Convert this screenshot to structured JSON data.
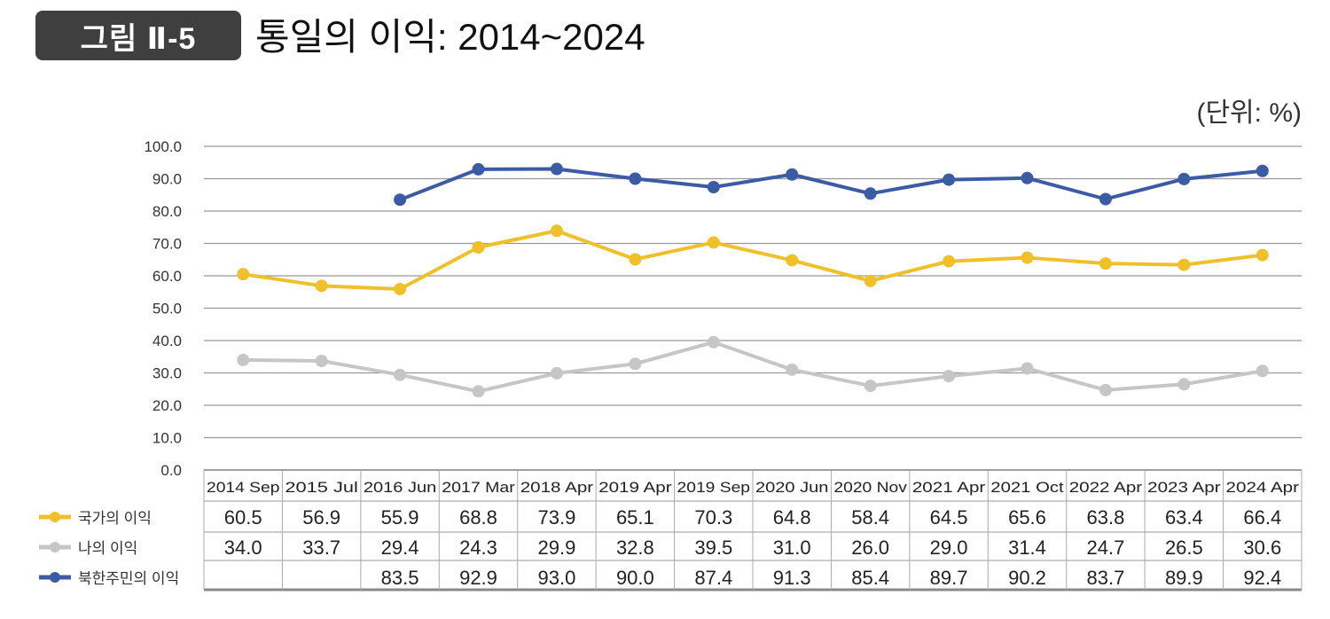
{
  "figure_label": "그림 Ⅱ-5",
  "title": "통일의 이익: 2014~2024",
  "unit": "(단위:  %)",
  "colors": {
    "national": "#f0c02a",
    "personal": "#c6c6c6",
    "nk": "#3b5ba5"
  },
  "chart_data": {
    "type": "line",
    "title": "통일의 이익: 2014~2024",
    "ylabel": "%",
    "ylim": [
      0,
      100
    ],
    "yticks": [
      "100.0",
      "90.0",
      "80.0",
      "70.0",
      "60.0",
      "50.0",
      "40.0",
      "30.0",
      "20.0",
      "10.0",
      "0.0"
    ],
    "grid": true,
    "legend": "bottom-left (table)",
    "categories": [
      "2014 Sep",
      "2015 Jul",
      "2016 Jun",
      "2017 Mar",
      "2018 Apr",
      "2019 Apr",
      "2019 Sep",
      "2020 Jun",
      "2020 Nov",
      "2021 Apr",
      "2021 Oct",
      "2022 Apr",
      "2023 Apr",
      "2024 Apr"
    ],
    "series": [
      {
        "name": "국가의 이익",
        "color": "#f0c02a",
        "values": [
          60.5,
          56.9,
          55.9,
          68.8,
          73.9,
          65.1,
          70.3,
          64.8,
          58.4,
          64.5,
          65.6,
          63.8,
          63.4,
          66.4
        ],
        "labels": [
          "60.5",
          "56.9",
          "55.9",
          "68.8",
          "73.9",
          "65.1",
          "70.3",
          "64.8",
          "58.4",
          "64.5",
          "65.6",
          "63.8",
          "63.4",
          "66.4"
        ]
      },
      {
        "name": "나의 이익",
        "color": "#c6c6c6",
        "values": [
          34.0,
          33.7,
          29.4,
          24.3,
          29.9,
          32.8,
          39.5,
          31.0,
          26.0,
          29.0,
          31.4,
          24.7,
          26.5,
          30.6
        ],
        "labels": [
          "34.0",
          "33.7",
          "29.4",
          "24.3",
          "29.9",
          "32.8",
          "39.5",
          "31.0",
          "26.0",
          "29.0",
          "31.4",
          "24.7",
          "26.5",
          "30.6"
        ]
      },
      {
        "name": "북한주민의 이익",
        "color": "#3b5ba5",
        "values": [
          null,
          null,
          83.5,
          92.9,
          93.0,
          90.0,
          87.4,
          91.3,
          85.4,
          89.7,
          90.2,
          83.7,
          89.9,
          92.4
        ],
        "labels": [
          "",
          "",
          "83.5",
          "92.9",
          "93.0",
          "90.0",
          "87.4",
          "91.3",
          "85.4",
          "89.7",
          "90.2",
          "83.7",
          "89.9",
          "92.4"
        ]
      }
    ]
  }
}
